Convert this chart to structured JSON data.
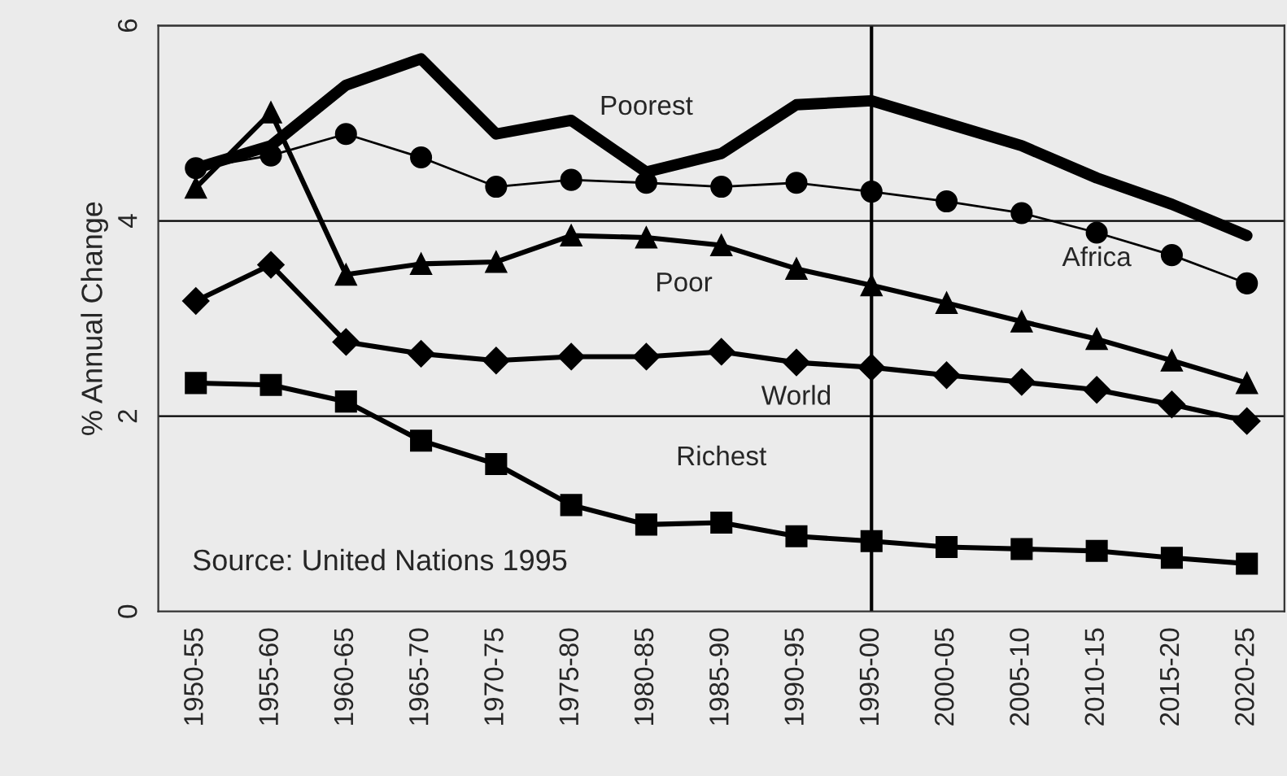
{
  "chart_data": {
    "type": "line",
    "ylabel": "% Annual Change",
    "categories": [
      "1950-55",
      "1955-60",
      "1960-65",
      "1965-70",
      "1970-75",
      "1975-80",
      "1980-85",
      "1985-90",
      "1990-95",
      "1995-00",
      "2000-05",
      "2005-10",
      "2010-15",
      "2015-20",
      "2020-25"
    ],
    "series": [
      {
        "name": "Poorest",
        "color": "#000000",
        "marker": "none",
        "values": [
          4.54,
          4.77,
          5.39,
          5.66,
          4.89,
          5.03,
          4.5,
          4.69,
          5.19,
          5.23,
          5.0,
          4.77,
          4.44,
          4.17,
          3.85
        ]
      },
      {
        "name": "Africa",
        "color": "#000000",
        "marker": "circle",
        "values": [
          4.54,
          4.67,
          4.89,
          4.65,
          4.35,
          4.42,
          4.39,
          4.35,
          4.39,
          4.3,
          4.2,
          4.08,
          3.88,
          3.65,
          3.36
        ]
      },
      {
        "name": "Poor",
        "color": "#000000",
        "marker": "triangle",
        "values": [
          4.34,
          5.11,
          3.45,
          3.56,
          3.58,
          3.85,
          3.83,
          3.75,
          3.51,
          3.34,
          3.16,
          2.97,
          2.79,
          2.57,
          2.34
        ]
      },
      {
        "name": "World",
        "color": "#000000",
        "marker": "diamond",
        "values": [
          3.18,
          3.55,
          2.76,
          2.64,
          2.57,
          2.61,
          2.61,
          2.66,
          2.55,
          2.5,
          2.42,
          2.35,
          2.27,
          2.12,
          1.95
        ]
      },
      {
        "name": "Richest",
        "color": "#000000",
        "marker": "square",
        "values": [
          2.34,
          2.32,
          2.15,
          1.75,
          1.51,
          1.09,
          0.89,
          0.91,
          0.77,
          0.72,
          0.66,
          0.64,
          0.62,
          0.55,
          0.49
        ]
      }
    ],
    "ylim": [
      0,
      6
    ],
    "yticks": [
      0,
      2,
      4,
      6
    ],
    "grid": "y",
    "ref_lines": [
      {
        "axis": "x",
        "value": "1995-00",
        "color": "#000000"
      }
    ],
    "annotations": [
      "Source: United Nations 1995"
    ]
  }
}
